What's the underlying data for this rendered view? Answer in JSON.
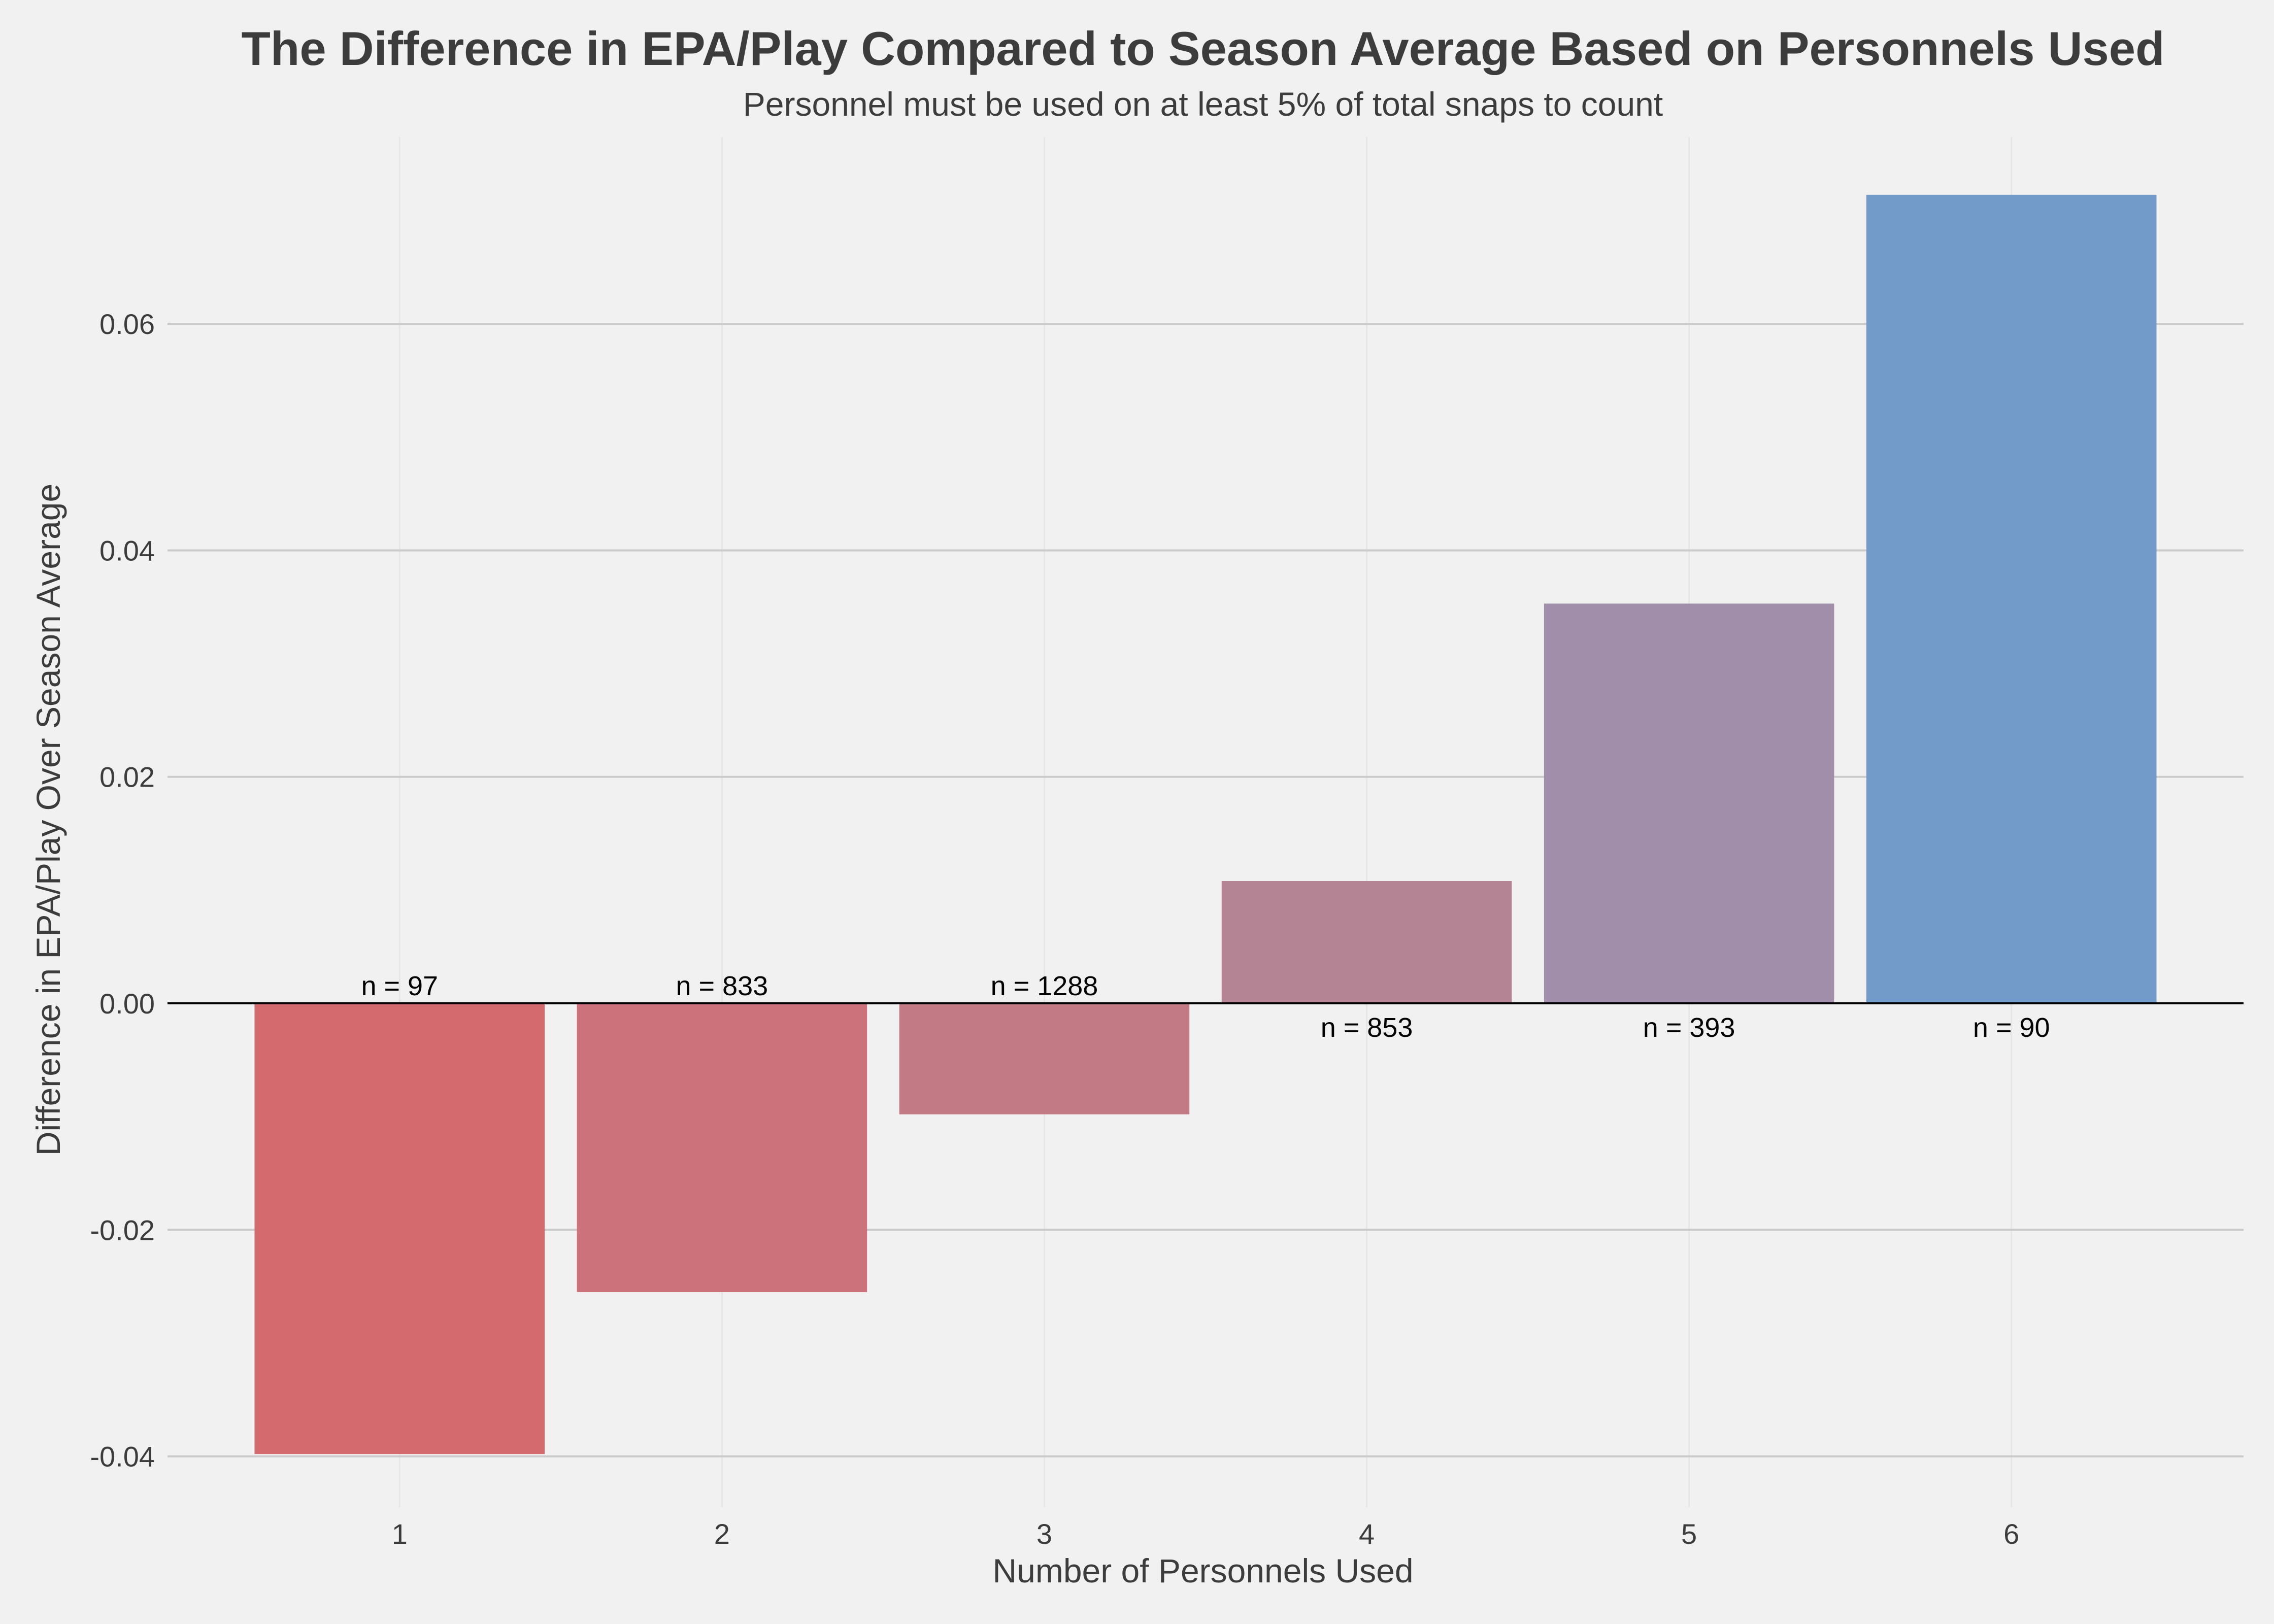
{
  "chart_data": {
    "type": "bar",
    "title": "The Difference in EPA/Play Compared to Season Average Based on Personnels Used",
    "subtitle": "Personnel must be used on at least 5% of total snaps to count",
    "xlabel": "Number of Personnels Used",
    "ylabel": "Difference in EPA/Play Over Season Average",
    "categories": [
      "1",
      "2",
      "3",
      "4",
      "5",
      "6"
    ],
    "values": [
      -0.0398,
      -0.0255,
      -0.0098,
      0.0108,
      0.0353,
      0.0714
    ],
    "data_labels": [
      "n = 97",
      "n = 833",
      "n = 1288",
      "n = 853",
      "n = 393",
      "n = 90"
    ],
    "bar_colors": [
      "#d56a6e",
      "#cc727b",
      "#c27a85",
      "#b48394",
      "#a08eab",
      "#739bc9"
    ],
    "ylim": [
      -0.0445,
      0.0765
    ],
    "yticks": [
      -0.04,
      -0.02,
      0.0,
      0.02,
      0.04,
      0.06
    ],
    "ytick_labels": [
      "-0.04",
      "-0.02",
      "0.00",
      "0.02",
      "0.04",
      "0.06"
    ],
    "xlim": [
      0.28,
      6.72
    ],
    "grid": true,
    "background": "#f1f1f1"
  }
}
